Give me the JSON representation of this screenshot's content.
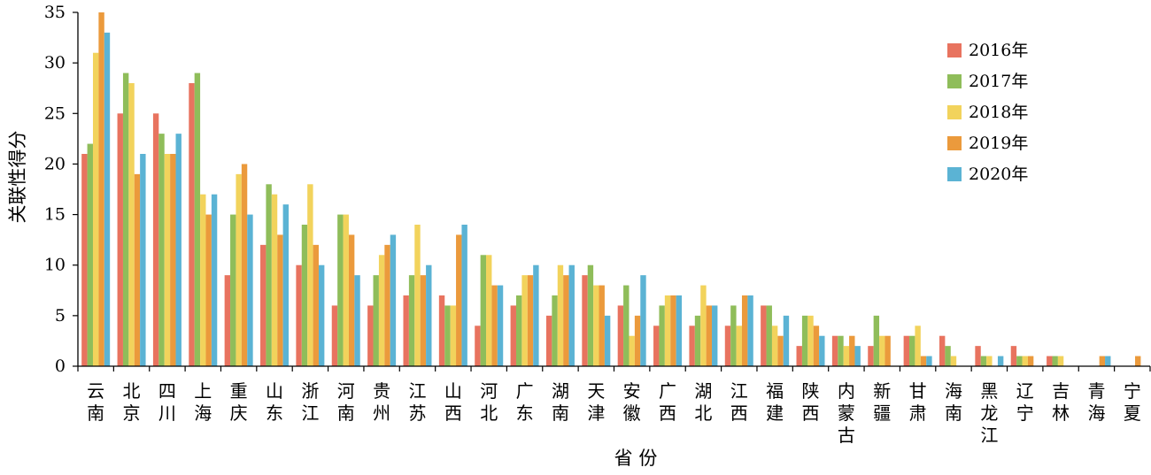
{
  "chart_data": {
    "type": "bar",
    "title": "",
    "xlabel": "省 份",
    "ylabel": "关联性得分",
    "ylim": [
      0,
      35
    ],
    "yticks": [
      0,
      5,
      10,
      15,
      20,
      25,
      30,
      35
    ],
    "grid": false,
    "legend_position": "top-right",
    "categories": [
      "云南",
      "北京",
      "四川",
      "上海",
      "重庆",
      "山东",
      "浙江",
      "河南",
      "贵州",
      "江苏",
      "山西",
      "河北",
      "广东",
      "湖南",
      "天津",
      "安徽",
      "广西",
      "湖北",
      "江西",
      "福建",
      "陕西",
      "内蒙古",
      "新疆",
      "甘肃",
      "海南",
      "黑龙江",
      "辽宁",
      "吉林",
      "青海",
      "宁夏"
    ],
    "series": [
      {
        "name": "2016年",
        "color": "#e8735f",
        "values": [
          21,
          25,
          25,
          28,
          9,
          12,
          10,
          6,
          6,
          7,
          7,
          4,
          6,
          5,
          9,
          6,
          4,
          4,
          4,
          6,
          2,
          3,
          2,
          3,
          3,
          2,
          2,
          1,
          0,
          0
        ]
      },
      {
        "name": "2017年",
        "color": "#8fbd5a",
        "values": [
          22,
          29,
          23,
          29,
          15,
          18,
          14,
          15,
          9,
          9,
          6,
          11,
          7,
          7,
          10,
          8,
          6,
          5,
          6,
          6,
          5,
          3,
          5,
          3,
          2,
          1,
          1,
          1,
          0,
          0
        ]
      },
      {
        "name": "2018年",
        "color": "#f2d35c",
        "values": [
          31,
          28,
          21,
          17,
          19,
          17,
          18,
          15,
          11,
          14,
          6,
          11,
          9,
          10,
          8,
          3,
          7,
          8,
          4,
          4,
          5,
          2,
          3,
          4,
          1,
          1,
          1,
          1,
          0,
          0
        ]
      },
      {
        "name": "2019年",
        "color": "#eb9a3c",
        "values": [
          35,
          19,
          21,
          15,
          20,
          13,
          12,
          13,
          12,
          9,
          13,
          8,
          9,
          9,
          8,
          5,
          7,
          6,
          7,
          3,
          4,
          3,
          3,
          1,
          0,
          0,
          1,
          0,
          1,
          1
        ]
      },
      {
        "name": "2020年",
        "color": "#5bb3d4",
        "values": [
          33,
          21,
          23,
          17,
          15,
          16,
          10,
          9,
          13,
          10,
          14,
          8,
          10,
          10,
          5,
          9,
          7,
          6,
          7,
          5,
          3,
          2,
          0,
          1,
          0,
          1,
          0,
          0,
          1,
          0
        ]
      }
    ]
  }
}
